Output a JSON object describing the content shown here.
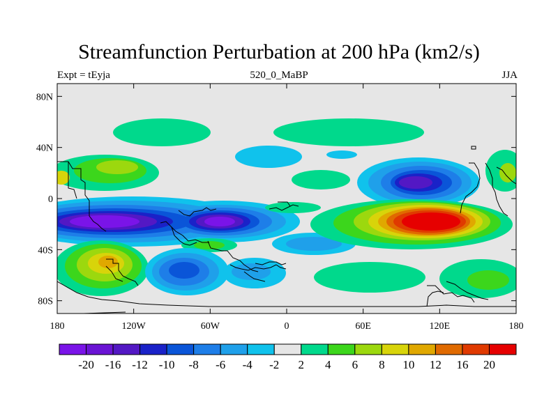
{
  "header": {
    "title": "Streamfunction Perturbation at 200 hPa (km2/s)",
    "left_label": "Expt = tEyja",
    "center_label": "520_0_MaBP",
    "right_label": "JJA"
  },
  "chart_data": {
    "type": "heatmap",
    "title": "Streamfunction Perturbation at 200 hPa (km2/s)",
    "xlabel": "",
    "ylabel": "",
    "xlim": [
      -180,
      180
    ],
    "ylim": [
      -90,
      90
    ],
    "x_ticks": [
      {
        "value": -180,
        "label": "180"
      },
      {
        "value": -120,
        "label": "120W"
      },
      {
        "value": -60,
        "label": "60W"
      },
      {
        "value": 0,
        "label": "0"
      },
      {
        "value": 60,
        "label": "60E"
      },
      {
        "value": 120,
        "label": "120E"
      },
      {
        "value": 180,
        "label": "180"
      }
    ],
    "y_ticks": [
      {
        "value": 80,
        "label": "80N"
      },
      {
        "value": 40,
        "label": "40N"
      },
      {
        "value": 0,
        "label": "0"
      },
      {
        "value": -40,
        "label": "40S"
      },
      {
        "value": -80,
        "label": "80S"
      }
    ],
    "colorbar": {
      "levels": [
        -20,
        -16,
        -12,
        -10,
        -8,
        -6,
        -4,
        -2,
        2,
        4,
        6,
        8,
        10,
        12,
        16,
        20
      ],
      "labels": [
        "-20",
        "-16",
        "-12",
        "-10",
        "-8",
        "-6",
        "-4",
        "-2",
        "2",
        "4",
        "6",
        "8",
        "10",
        "12",
        "16",
        "20"
      ],
      "colors": [
        "#7a14e8",
        "#6a14d4",
        "#5318c4",
        "#1a22c8",
        "#0a55d8",
        "#1e7ee8",
        "#1fa0ea",
        "#10c2ec",
        "#e6e6e6",
        "#00d98c",
        "#3cd61c",
        "#9cd80e",
        "#d8d40a",
        "#e0a800",
        "#e06a00",
        "#e03a00",
        "#e60000"
      ]
    },
    "features": [
      {
        "name": "tropical-pacific-low",
        "lon": -125,
        "lat": -17,
        "value": -20
      },
      {
        "name": "south-american-low",
        "lon": -45,
        "lat": -17,
        "value": -20
      },
      {
        "name": "asian-high",
        "lon": 100,
        "lat": -18,
        "value": 20
      },
      {
        "name": "tibetan-low",
        "lon": 100,
        "lat": 12,
        "value": -12
      },
      {
        "name": "south-pacific-high",
        "lon": -135,
        "lat": -50,
        "value": 10
      },
      {
        "name": "south-atlantic-low",
        "lon": -78,
        "lat": -55,
        "value": -10
      }
    ]
  }
}
